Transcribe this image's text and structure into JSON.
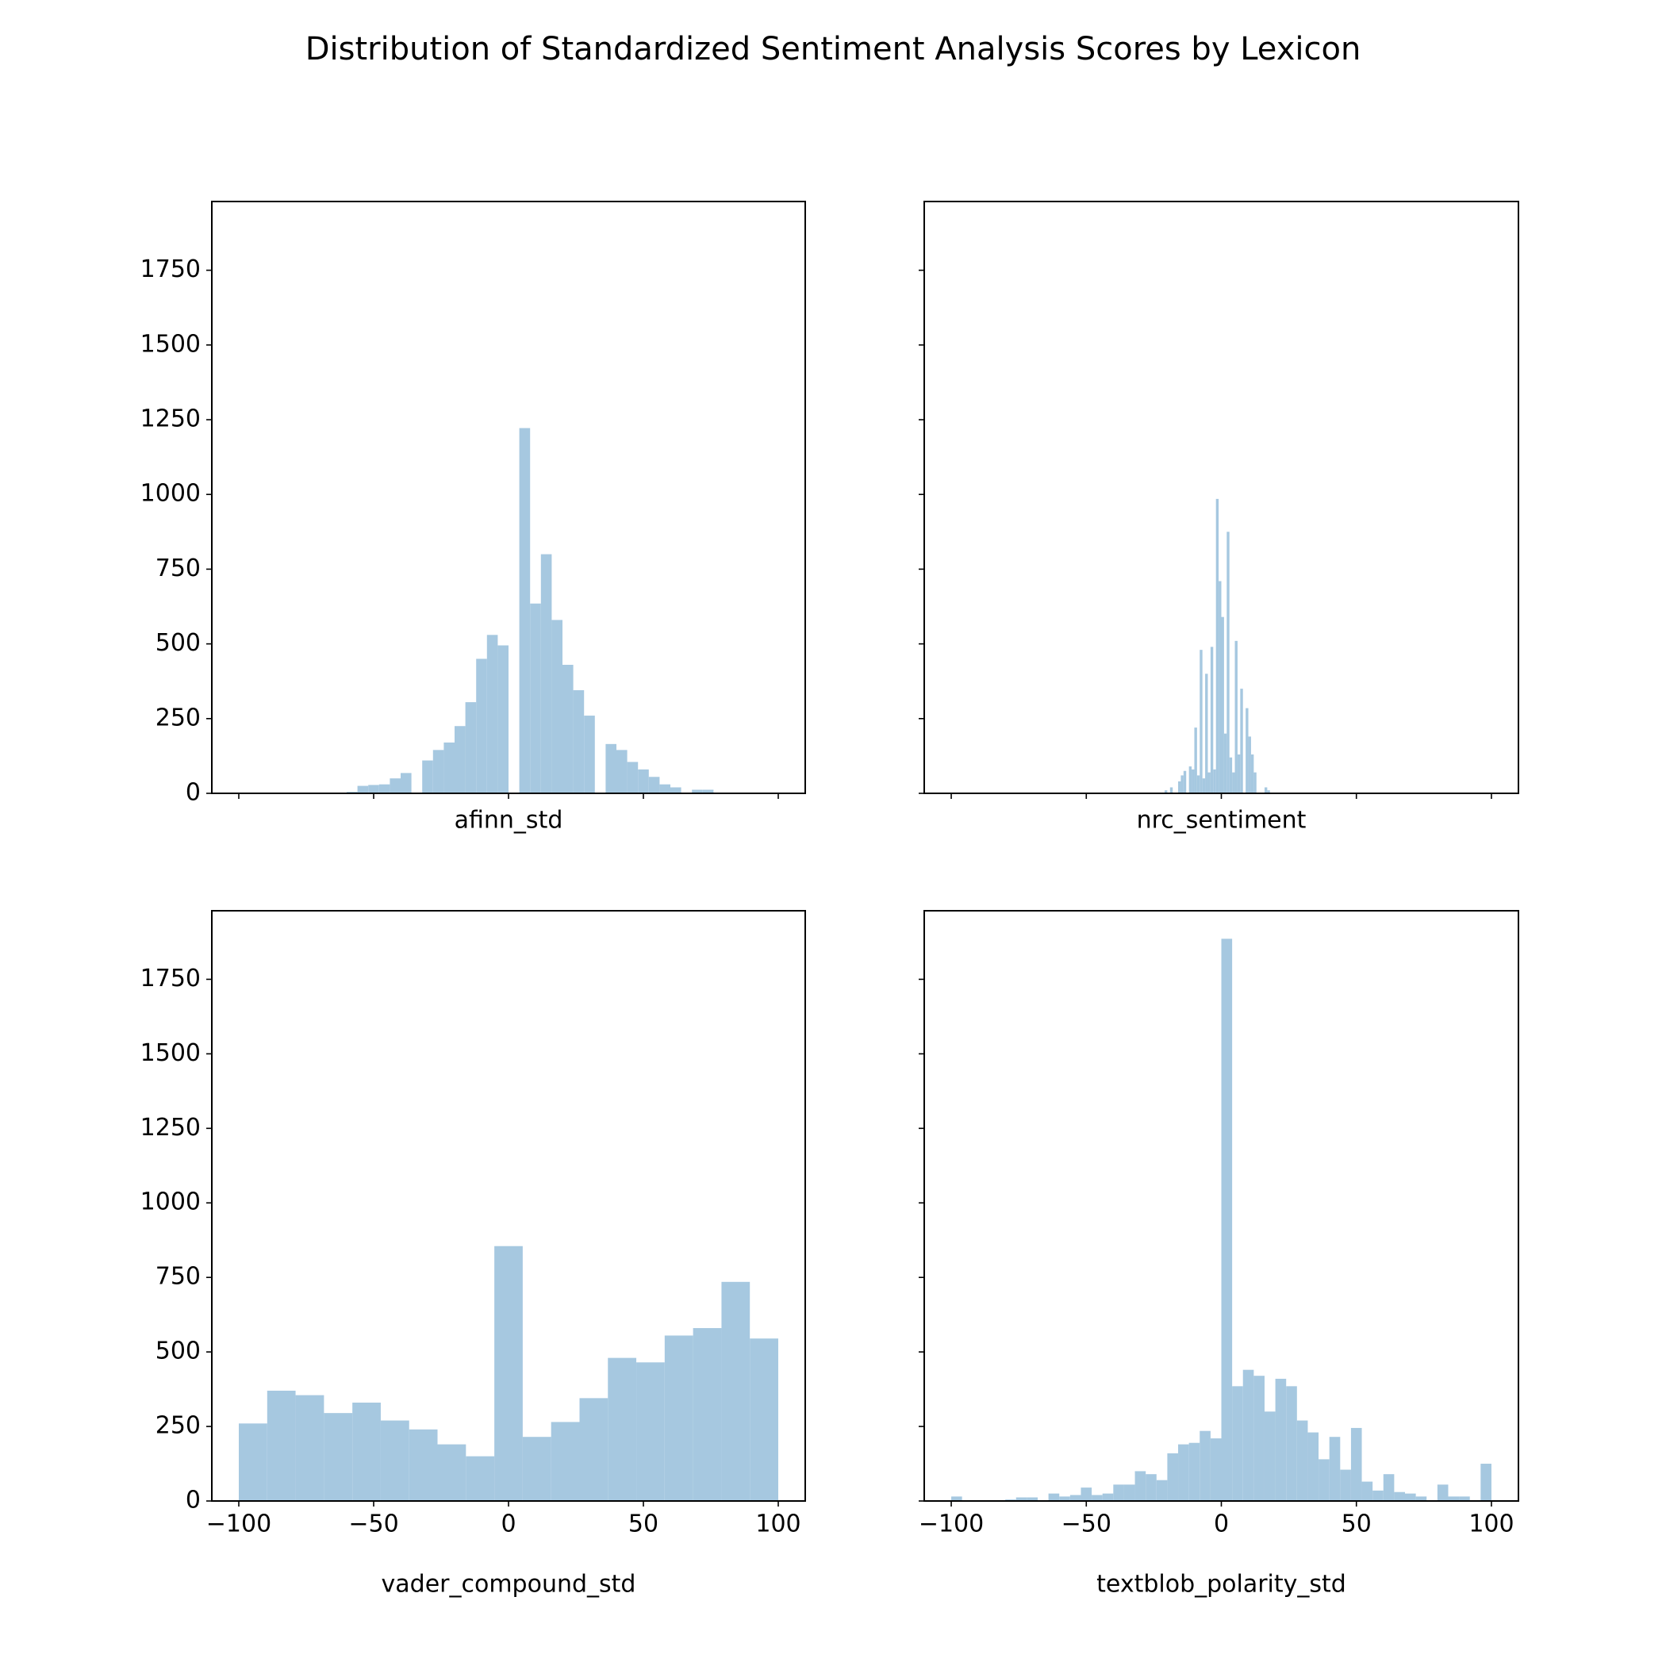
{
  "title": "Distribution of Standardized Sentiment Analysis Scores by Lexicon",
  "chart_data": [
    {
      "type": "histogram",
      "xlabel": "afinn_std",
      "color": "#a6c8e0",
      "bins": [
        -60,
        -56,
        -52,
        -48,
        -44,
        -40,
        -36,
        -32,
        -28,
        -24,
        -20,
        -16,
        -12,
        -8,
        -4,
        0,
        4,
        8,
        12,
        16,
        20,
        24,
        28,
        32,
        36,
        40,
        44,
        48,
        52,
        56,
        60,
        64,
        68,
        72,
        76
      ],
      "values": [
        5,
        25,
        28,
        30,
        50,
        68,
        0,
        110,
        145,
        170,
        225,
        305,
        450,
        530,
        495,
        0,
        1222,
        635,
        800,
        580,
        430,
        345,
        260,
        0,
        165,
        145,
        105,
        80,
        55,
        30,
        20,
        0,
        12,
        12
      ],
      "xlim": [
        -110,
        110
      ],
      "ylim": [
        0,
        1980
      ],
      "xticks": [
        {
          "value": -100,
          "label": "−100"
        },
        {
          "value": -50,
          "label": "−50"
        },
        0,
        50,
        100
      ],
      "yticks": [
        0,
        250,
        500,
        750,
        1000,
        1250,
        1500,
        1750
      ],
      "xtick_labels": false,
      "ytick_labels": true
    },
    {
      "type": "histogram",
      "xlabel": "nrc_sentiment",
      "color": "#a6c8e0",
      "bins": [
        -21,
        -20,
        -19,
        -18,
        -17,
        -16,
        -15,
        -14,
        -13,
        -12,
        -11,
        -10,
        -9,
        -8,
        -7,
        -6,
        -5,
        -4,
        -3,
        -2,
        -1,
        0,
        1,
        2,
        3,
        4,
        5,
        6,
        7,
        8,
        9,
        10,
        11,
        12,
        13,
        14,
        15,
        16,
        17,
        18,
        19
      ],
      "values": [
        10,
        0,
        20,
        0,
        0,
        40,
        60,
        75,
        0,
        90,
        80,
        220,
        60,
        480,
        50,
        400,
        70,
        490,
        80,
        985,
        710,
        590,
        200,
        875,
        120,
        70,
        510,
        130,
        350,
        0,
        285,
        190,
        130,
        70,
        0,
        0,
        0,
        20,
        10,
        0
      ],
      "xlim": [
        -110,
        110
      ],
      "ylim": [
        0,
        1980
      ],
      "xticks": [
        {
          "value": -100,
          "label": "−100"
        },
        {
          "value": -50,
          "label": "−50"
        },
        0,
        50,
        100
      ],
      "yticks": [
        0,
        250,
        500,
        750,
        1000,
        1250,
        1500,
        1750
      ],
      "xtick_labels": false,
      "ytick_labels": false
    },
    {
      "type": "histogram",
      "xlabel": "vader_compound_std",
      "color": "#a6c8e0",
      "bins": [
        -100,
        -89.47,
        -78.95,
        -68.42,
        -57.89,
        -47.37,
        -36.84,
        -26.32,
        -15.79,
        -5.26,
        5.26,
        15.79,
        26.32,
        36.84,
        47.37,
        57.89,
        68.42,
        78.95,
        89.47,
        100
      ],
      "values": [
        260,
        370,
        355,
        295,
        330,
        270,
        240,
        190,
        150,
        855,
        215,
        265,
        345,
        480,
        465,
        555,
        580,
        735,
        545
      ],
      "xlim": [
        -110,
        110
      ],
      "ylim": [
        0,
        1980
      ],
      "xticks": [
        {
          "value": -100,
          "label": "−100"
        },
        {
          "value": -50,
          "label": "−50"
        },
        0,
        50,
        100
      ],
      "yticks": [
        0,
        250,
        500,
        750,
        1000,
        1250,
        1500,
        1750
      ],
      "xtick_labels": true,
      "ytick_labels": true
    },
    {
      "type": "histogram",
      "xlabel": "textblob_polarity_std",
      "color": "#a6c8e0",
      "bins": [
        -100,
        -96,
        -92,
        -88,
        -84,
        -80,
        -76,
        -72,
        -68,
        -64,
        -60,
        -56,
        -52,
        -48,
        -44,
        -40,
        -36,
        -32,
        -28,
        -24,
        -20,
        -16,
        -12,
        -8,
        -4,
        0,
        4,
        8,
        12,
        16,
        20,
        24,
        28,
        32,
        36,
        40,
        44,
        48,
        52,
        56,
        60,
        64,
        68,
        72,
        76,
        80,
        84,
        88,
        92,
        96,
        100
      ],
      "values": [
        15,
        0,
        0,
        0,
        0,
        5,
        12,
        12,
        0,
        25,
        15,
        20,
        45,
        20,
        25,
        55,
        55,
        100,
        90,
        70,
        160,
        190,
        195,
        235,
        210,
        1886,
        385,
        440,
        420,
        300,
        410,
        385,
        270,
        230,
        140,
        215,
        105,
        245,
        65,
        35,
        90,
        30,
        25,
        15,
        0,
        55,
        15,
        15,
        0,
        125
      ],
      "xlim": [
        -110,
        110
      ],
      "ylim": [
        0,
        1980
      ],
      "xticks": [
        {
          "value": -100,
          "label": "−100"
        },
        {
          "value": -50,
          "label": "−50"
        },
        0,
        50,
        100
      ],
      "yticks": [
        0,
        250,
        500,
        750,
        1000,
        1250,
        1500,
        1750
      ],
      "xtick_labels": true,
      "ytick_labels": false
    }
  ]
}
